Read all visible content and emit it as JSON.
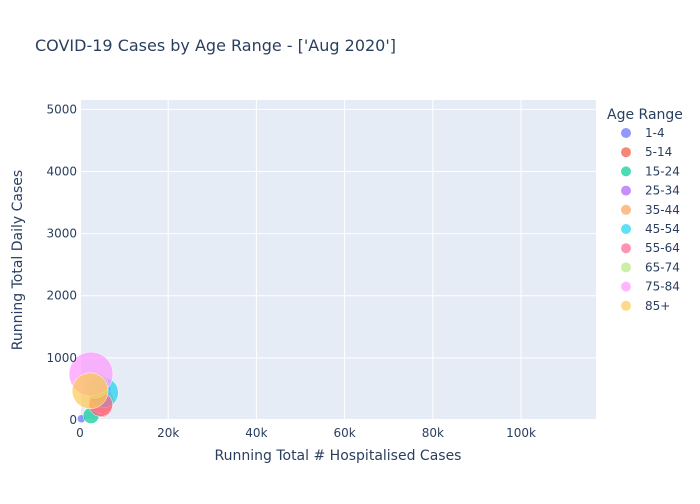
{
  "chart_data": {
    "type": "scatter",
    "title": "COVID-19 Cases by Age Range - ['Aug 2020']",
    "xlabel": "Running Total # Hospitalised Cases",
    "ylabel": "Running Total Daily Cases",
    "xlim": [
      0,
      117000
    ],
    "ylim": [
      0,
      5150
    ],
    "xticks": [
      0,
      20000,
      40000,
      60000,
      80000,
      100000
    ],
    "xtick_labels": [
      "0",
      "20k",
      "40k",
      "60k",
      "80k",
      "100k"
    ],
    "yticks": [
      0,
      1000,
      2000,
      3000,
      4000,
      5000
    ],
    "ytick_labels": [
      "0",
      "1000",
      "2000",
      "3000",
      "4000",
      "5000"
    ],
    "grid": true,
    "legend_title": "Age Range",
    "legend_position": "right",
    "series": [
      {
        "name": "1-4",
        "color": "#636efa",
        "points": [
          {
            "x": 300,
            "y": 20,
            "size": 4
          }
        ]
      },
      {
        "name": "5-14",
        "color": "#ef553b",
        "points": [
          {
            "x": 4800,
            "y": 220,
            "size": 11
          }
        ]
      },
      {
        "name": "15-24",
        "color": "#00cc96",
        "points": [
          {
            "x": 2500,
            "y": 70,
            "size": 8
          }
        ]
      },
      {
        "name": "25-34",
        "color": "#ab63fa",
        "points": [
          {
            "x": 4300,
            "y": 480,
            "size": 12
          }
        ]
      },
      {
        "name": "35-44",
        "color": "#ffa15a",
        "points": [
          {
            "x": 4800,
            "y": 310,
            "size": 13
          }
        ]
      },
      {
        "name": "45-54",
        "color": "#19d3f3",
        "points": [
          {
            "x": 5300,
            "y": 440,
            "size": 15
          }
        ]
      },
      {
        "name": "55-64",
        "color": "#ff6692",
        "points": [
          {
            "x": 4700,
            "y": 250,
            "size": 12
          }
        ]
      },
      {
        "name": "65-74",
        "color": "#b6e880",
        "points": [
          {
            "x": 3500,
            "y": 560,
            "size": 13
          }
        ]
      },
      {
        "name": "75-84",
        "color": "#ff97ff",
        "points": [
          {
            "x": 2500,
            "y": 740,
            "size": 22
          }
        ]
      },
      {
        "name": "85+",
        "color": "#fecb52",
        "points": [
          {
            "x": 2300,
            "y": 470,
            "size": 18
          }
        ]
      }
    ]
  }
}
